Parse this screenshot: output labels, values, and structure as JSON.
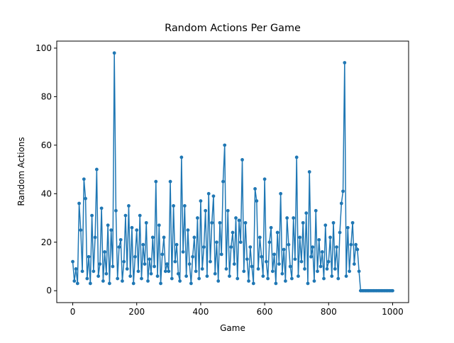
{
  "chart_data": {
    "type": "line",
    "title": "Random Actions Per Game",
    "x_label": "Game",
    "y_label": "Random Actions",
    "xlim": [
      -50,
      1050
    ],
    "ylim": [
      -4.9,
      102.9
    ],
    "xticks": [
      0,
      200,
      400,
      600,
      800,
      1000
    ],
    "yticks": [
      0,
      20,
      40,
      60,
      80,
      100
    ],
    "grid": false,
    "x": [
      0,
      5,
      10,
      15,
      20,
      25,
      30,
      35,
      40,
      45,
      50,
      55,
      60,
      65,
      70,
      75,
      80,
      85,
      90,
      95,
      100,
      105,
      110,
      115,
      120,
      125,
      130,
      135,
      140,
      145,
      150,
      155,
      160,
      165,
      170,
      175,
      180,
      185,
      190,
      195,
      200,
      205,
      210,
      215,
      220,
      225,
      230,
      235,
      240,
      245,
      250,
      255,
      260,
      265,
      270,
      275,
      280,
      285,
      290,
      295,
      300,
      305,
      310,
      315,
      320,
      325,
      330,
      335,
      340,
      345,
      350,
      355,
      360,
      365,
      370,
      375,
      380,
      385,
      390,
      395,
      400,
      405,
      410,
      415,
      420,
      425,
      430,
      435,
      440,
      445,
      450,
      455,
      460,
      465,
      470,
      475,
      480,
      485,
      490,
      495,
      500,
      505,
      510,
      515,
      520,
      525,
      530,
      535,
      540,
      545,
      550,
      555,
      560,
      565,
      570,
      575,
      580,
      585,
      590,
      595,
      600,
      605,
      610,
      615,
      620,
      625,
      630,
      635,
      640,
      645,
      650,
      655,
      660,
      665,
      670,
      675,
      680,
      685,
      690,
      695,
      700,
      705,
      710,
      715,
      720,
      725,
      730,
      735,
      740,
      745,
      750,
      755,
      760,
      765,
      770,
      775,
      780,
      785,
      790,
      795,
      800,
      805,
      810,
      815,
      820,
      825,
      830,
      835,
      840,
      845,
      850,
      855,
      860,
      865,
      870,
      875,
      880,
      885,
      890,
      895,
      900,
      905,
      910,
      915,
      920,
      925,
      930,
      935,
      940,
      945,
      950,
      955,
      960,
      965,
      970,
      975,
      980,
      985,
      990,
      995,
      1000
    ],
    "series": [
      {
        "name": "Random Actions",
        "color": "#1f77b4",
        "values": [
          12,
          4,
          9,
          3,
          36,
          25,
          8,
          46,
          38,
          5,
          14,
          3,
          31,
          8,
          22,
          50,
          6,
          11,
          34,
          4,
          16,
          7,
          27,
          3,
          25,
          10,
          98,
          33,
          5,
          18,
          21,
          4,
          12,
          31,
          9,
          35,
          6,
          26,
          3,
          14,
          25,
          8,
          31,
          5,
          19,
          11,
          28,
          4,
          13,
          7,
          22,
          10,
          45,
          6,
          27,
          3,
          15,
          22,
          8,
          11,
          8,
          45,
          5,
          35,
          12,
          19,
          7,
          4,
          55,
          16,
          35,
          6,
          25,
          11,
          3,
          14,
          22,
          8,
          30,
          5,
          37,
          9,
          18,
          33,
          6,
          40,
          12,
          28,
          39,
          7,
          20,
          4,
          28,
          15,
          45,
          60,
          9,
          33,
          6,
          18,
          24,
          11,
          30,
          5,
          29,
          20,
          54,
          8,
          28,
          13,
          4,
          18,
          10,
          3,
          42,
          37,
          9,
          22,
          14,
          6,
          46,
          12,
          5,
          20,
          26,
          8,
          15,
          3,
          24,
          11,
          40,
          7,
          17,
          4,
          30,
          19,
          10,
          5,
          30,
          13,
          55,
          6,
          22,
          12,
          28,
          9,
          32,
          3,
          49,
          14,
          18,
          4,
          33,
          8,
          21,
          10,
          16,
          5,
          27,
          9,
          12,
          22,
          6,
          28,
          9,
          18,
          5,
          24,
          36,
          41,
          94,
          6,
          26,
          8,
          19,
          28,
          11,
          19,
          17,
          8,
          0,
          0,
          0,
          0,
          0,
          0,
          0,
          0,
          0,
          0,
          0,
          0,
          0,
          0,
          0,
          0,
          0,
          0,
          0,
          0,
          0
        ]
      }
    ]
  }
}
